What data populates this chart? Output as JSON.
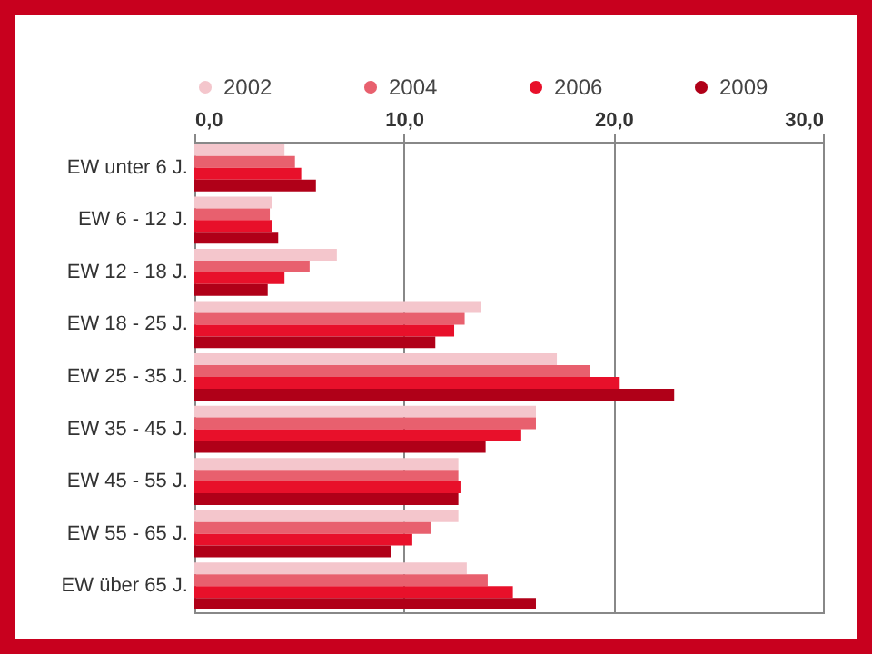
{
  "chart_data": {
    "type": "bar",
    "orientation": "horizontal",
    "categories": [
      "EW unter 6 J.",
      "EW  6 - 12 J.",
      "EW 12 - 18 J.",
      "EW 18 - 25 J.",
      "EW 25 - 35 J.",
      "EW 35 - 45 J.",
      "EW 45 - 55 J.",
      "EW 55 - 65 J.",
      "EW über 65 J."
    ],
    "series": [
      {
        "name": "2002",
        "color": "#f4c6cc",
        "values": [
          4.3,
          3.7,
          6.8,
          13.7,
          17.3,
          16.3,
          12.6,
          12.6,
          13.0
        ]
      },
      {
        "name": "2004",
        "color": "#e8606e",
        "values": [
          4.8,
          3.6,
          5.5,
          12.9,
          18.9,
          16.3,
          12.6,
          11.3,
          14.0
        ]
      },
      {
        "name": "2006",
        "color": "#e8102a",
        "values": [
          5.1,
          3.7,
          4.3,
          12.4,
          20.3,
          15.6,
          12.7,
          10.4,
          15.2
        ]
      },
      {
        "name": "2009",
        "color": "#b00018",
        "values": [
          5.8,
          4.0,
          3.5,
          11.5,
          22.9,
          13.9,
          12.6,
          9.4,
          16.3
        ]
      }
    ],
    "xlim": [
      0,
      30
    ],
    "xticks": [
      {
        "value": 0,
        "label": "0,0"
      },
      {
        "value": 10,
        "label": "10,0"
      },
      {
        "value": 20,
        "label": "20,0"
      },
      {
        "value": 30,
        "label": "30,0"
      }
    ],
    "grid": "x",
    "legend": "top"
  }
}
